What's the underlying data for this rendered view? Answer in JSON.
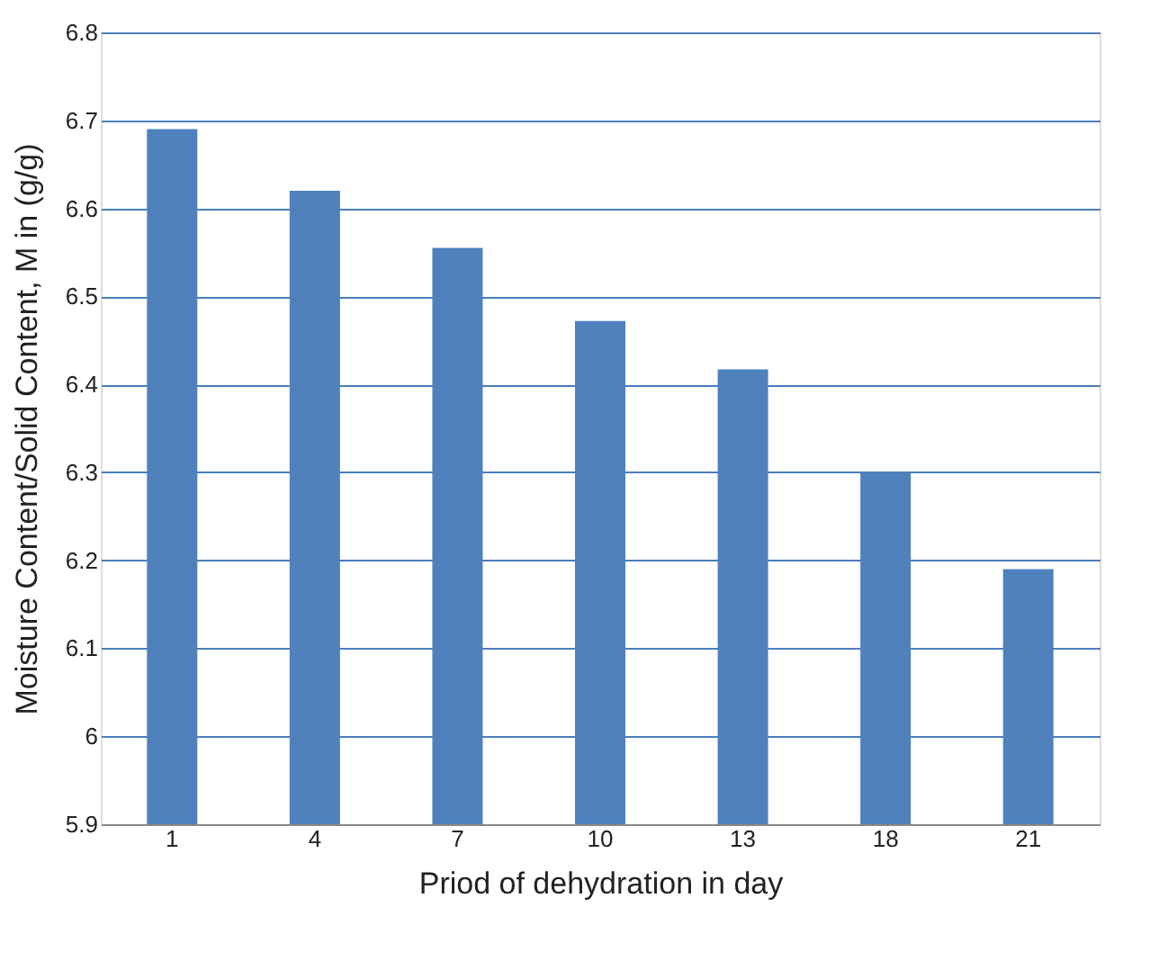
{
  "chart_data": {
    "type": "bar",
    "xlabel": "Priod of dehydration in day",
    "ylabel": "Moisture Content/Solid Content, M in (g/g)",
    "categories": [
      "1",
      "4",
      "7",
      "10",
      "13",
      "18",
      "21"
    ],
    "values": [
      6.69,
      6.62,
      6.555,
      6.472,
      6.417,
      6.3,
      6.19
    ],
    "color": "#4f81bd",
    "ylim": [
      5.9,
      6.8
    ],
    "yticks": [
      5.9,
      6,
      6.1,
      6.2,
      6.3,
      6.4,
      6.5,
      6.6,
      6.7,
      6.8
    ],
    "grid": "y"
  }
}
